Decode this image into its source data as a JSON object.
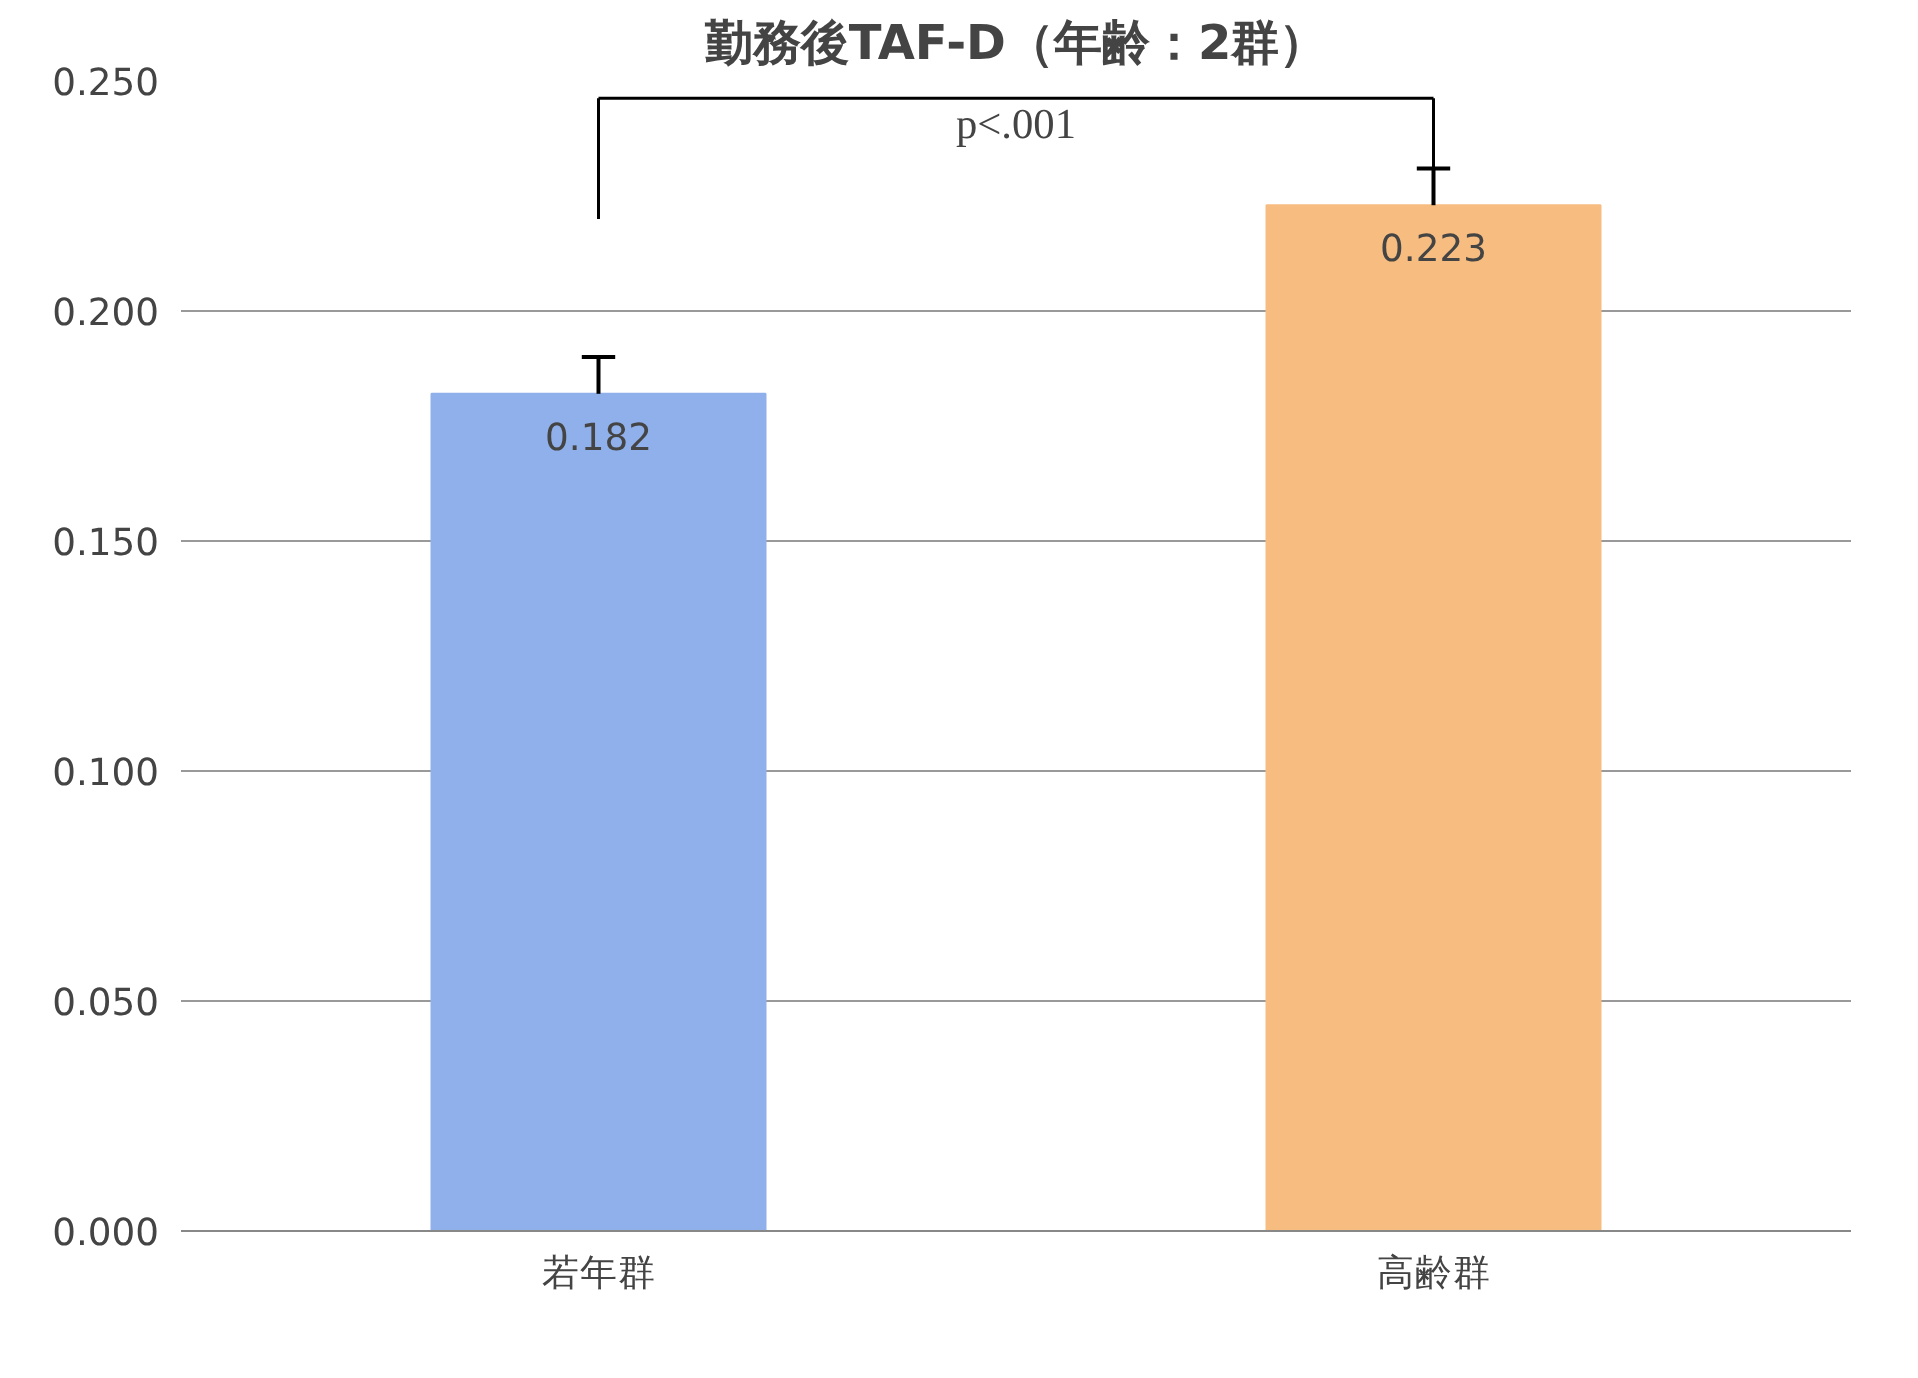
{
  "chart_data": {
    "type": "bar",
    "title": "勤務後TAF-D（年齢：2群）",
    "categories": [
      "若年群",
      "高齢群"
    ],
    "values": [
      0.182,
      0.223
    ],
    "colors": [
      "#8fb0ea",
      "#f7bd80"
    ],
    "errors": [
      [
        0.182,
        0.19
      ],
      [
        0.223,
        0.231
      ]
    ],
    "data_labels": true,
    "ylim": [
      0,
      0.25
    ],
    "yticks": [
      {
        "value": 0,
        "label": "0.000"
      },
      {
        "value": 0.05,
        "label": "0.050"
      },
      {
        "value": 0.1,
        "label": "0.100"
      },
      {
        "value": 0.15,
        "label": "0.150"
      },
      {
        "value": 0.2,
        "label": "0.200"
      },
      {
        "value": 0.25,
        "label": "0.250"
      }
    ],
    "grid": "y",
    "annotations": [
      "p<.001"
    ]
  }
}
